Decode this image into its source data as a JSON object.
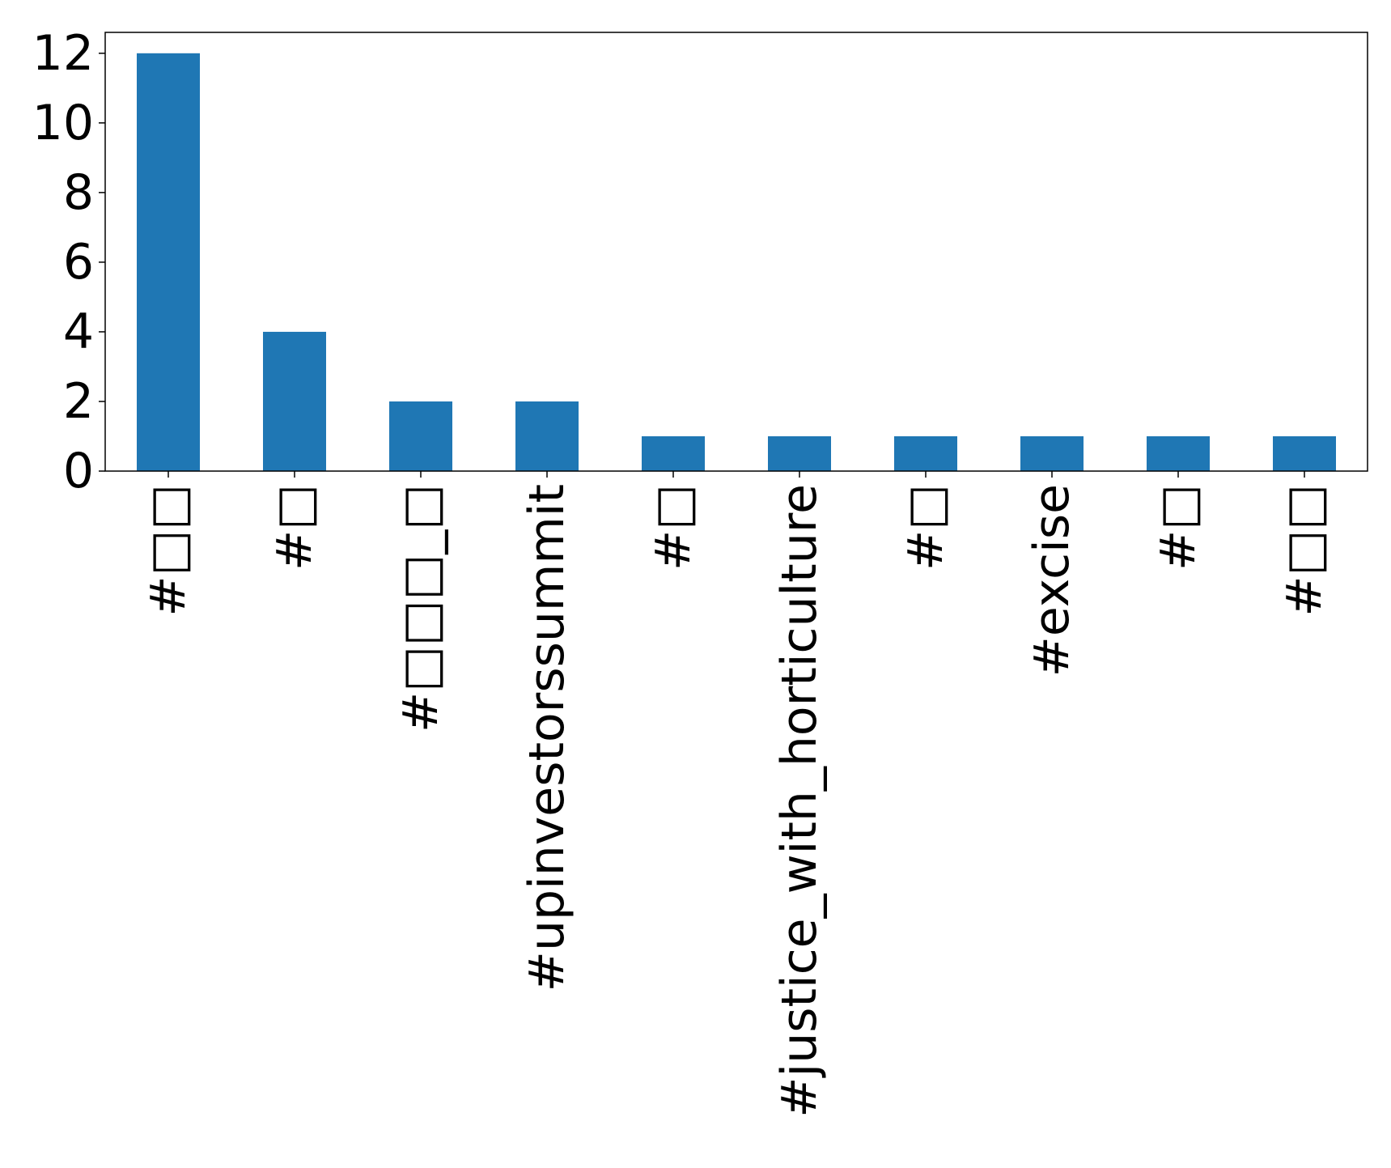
{
  "chart_data": {
    "type": "bar",
    "categories": [
      "#□□",
      "#□",
      "#□□□_□",
      "#upinvestorssummit",
      "#□",
      "#justice_with_horticulture",
      "#□",
      "#excise",
      "#□",
      "#□□"
    ],
    "values": [
      12,
      4,
      2,
      2,
      1,
      1,
      1,
      1,
      1,
      1
    ],
    "title": "",
    "xlabel": "",
    "ylabel": "",
    "ylim": [
      0,
      12.6
    ],
    "yticks": [
      0,
      2,
      4,
      6,
      8,
      10,
      12
    ],
    "grid": false,
    "bar_color": "#1f77b4"
  }
}
